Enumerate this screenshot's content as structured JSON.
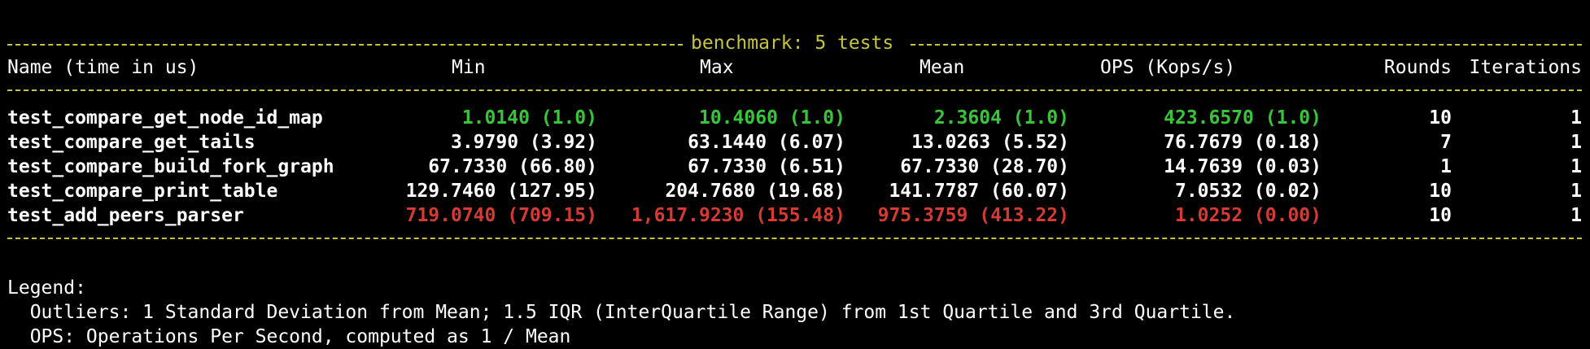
{
  "header": {
    "title": "benchmark: 5 tests"
  },
  "columns": {
    "name": "Name (time in us)",
    "min": "Min",
    "max": "Max",
    "mean": "Mean",
    "ops": "OPS (Kops/s)",
    "rounds": "Rounds",
    "iterations": "Iterations"
  },
  "rows": [
    {
      "name": "test_compare_get_node_id_map",
      "min": "1.0140 (1.0)",
      "max": "10.4060 (1.0)",
      "mean": "2.3604 (1.0)",
      "ops": "423.6570 (1.0)",
      "rounds": "10",
      "iterations": "1"
    },
    {
      "name": "test_compare_get_tails",
      "min": "3.9790 (3.92)",
      "max": "63.1440 (6.07)",
      "mean": "13.0263 (5.52)",
      "ops": "76.7679 (0.18)",
      "rounds": "7",
      "iterations": "1"
    },
    {
      "name": "test_compare_build_fork_graph",
      "min": "67.7330 (66.80)",
      "max": "67.7330 (6.51)",
      "mean": "67.7330 (28.70)",
      "ops": "14.7639 (0.03)",
      "rounds": "1",
      "iterations": "1"
    },
    {
      "name": "test_compare_print_table",
      "min": "129.7460 (127.95)",
      "max": "204.7680 (19.68)",
      "mean": "141.7787 (60.07)",
      "ops": "7.0532 (0.02)",
      "rounds": "10",
      "iterations": "1"
    },
    {
      "name": "test_add_peers_parser",
      "min": "719.0740 (709.15)",
      "max": "1,617.9230 (155.48)",
      "mean": "975.3759 (413.22)",
      "ops": "1.0252 (0.00)",
      "rounds": "10",
      "iterations": "1"
    }
  ],
  "legend": {
    "title": "Legend:",
    "outliers": "  Outliers: 1 Standard Deviation from Mean; 1.5 IQR (InterQuartile Range) from 1st Quartile and 3rd Quartile.",
    "ops": "  OPS: Operations Per Second, computed as 1 / Mean"
  },
  "colors": {
    "rule": "#c7c43a",
    "best": "#39c53a",
    "worst": "#d63a32",
    "text": "#ffffff",
    "background": "#000000"
  }
}
